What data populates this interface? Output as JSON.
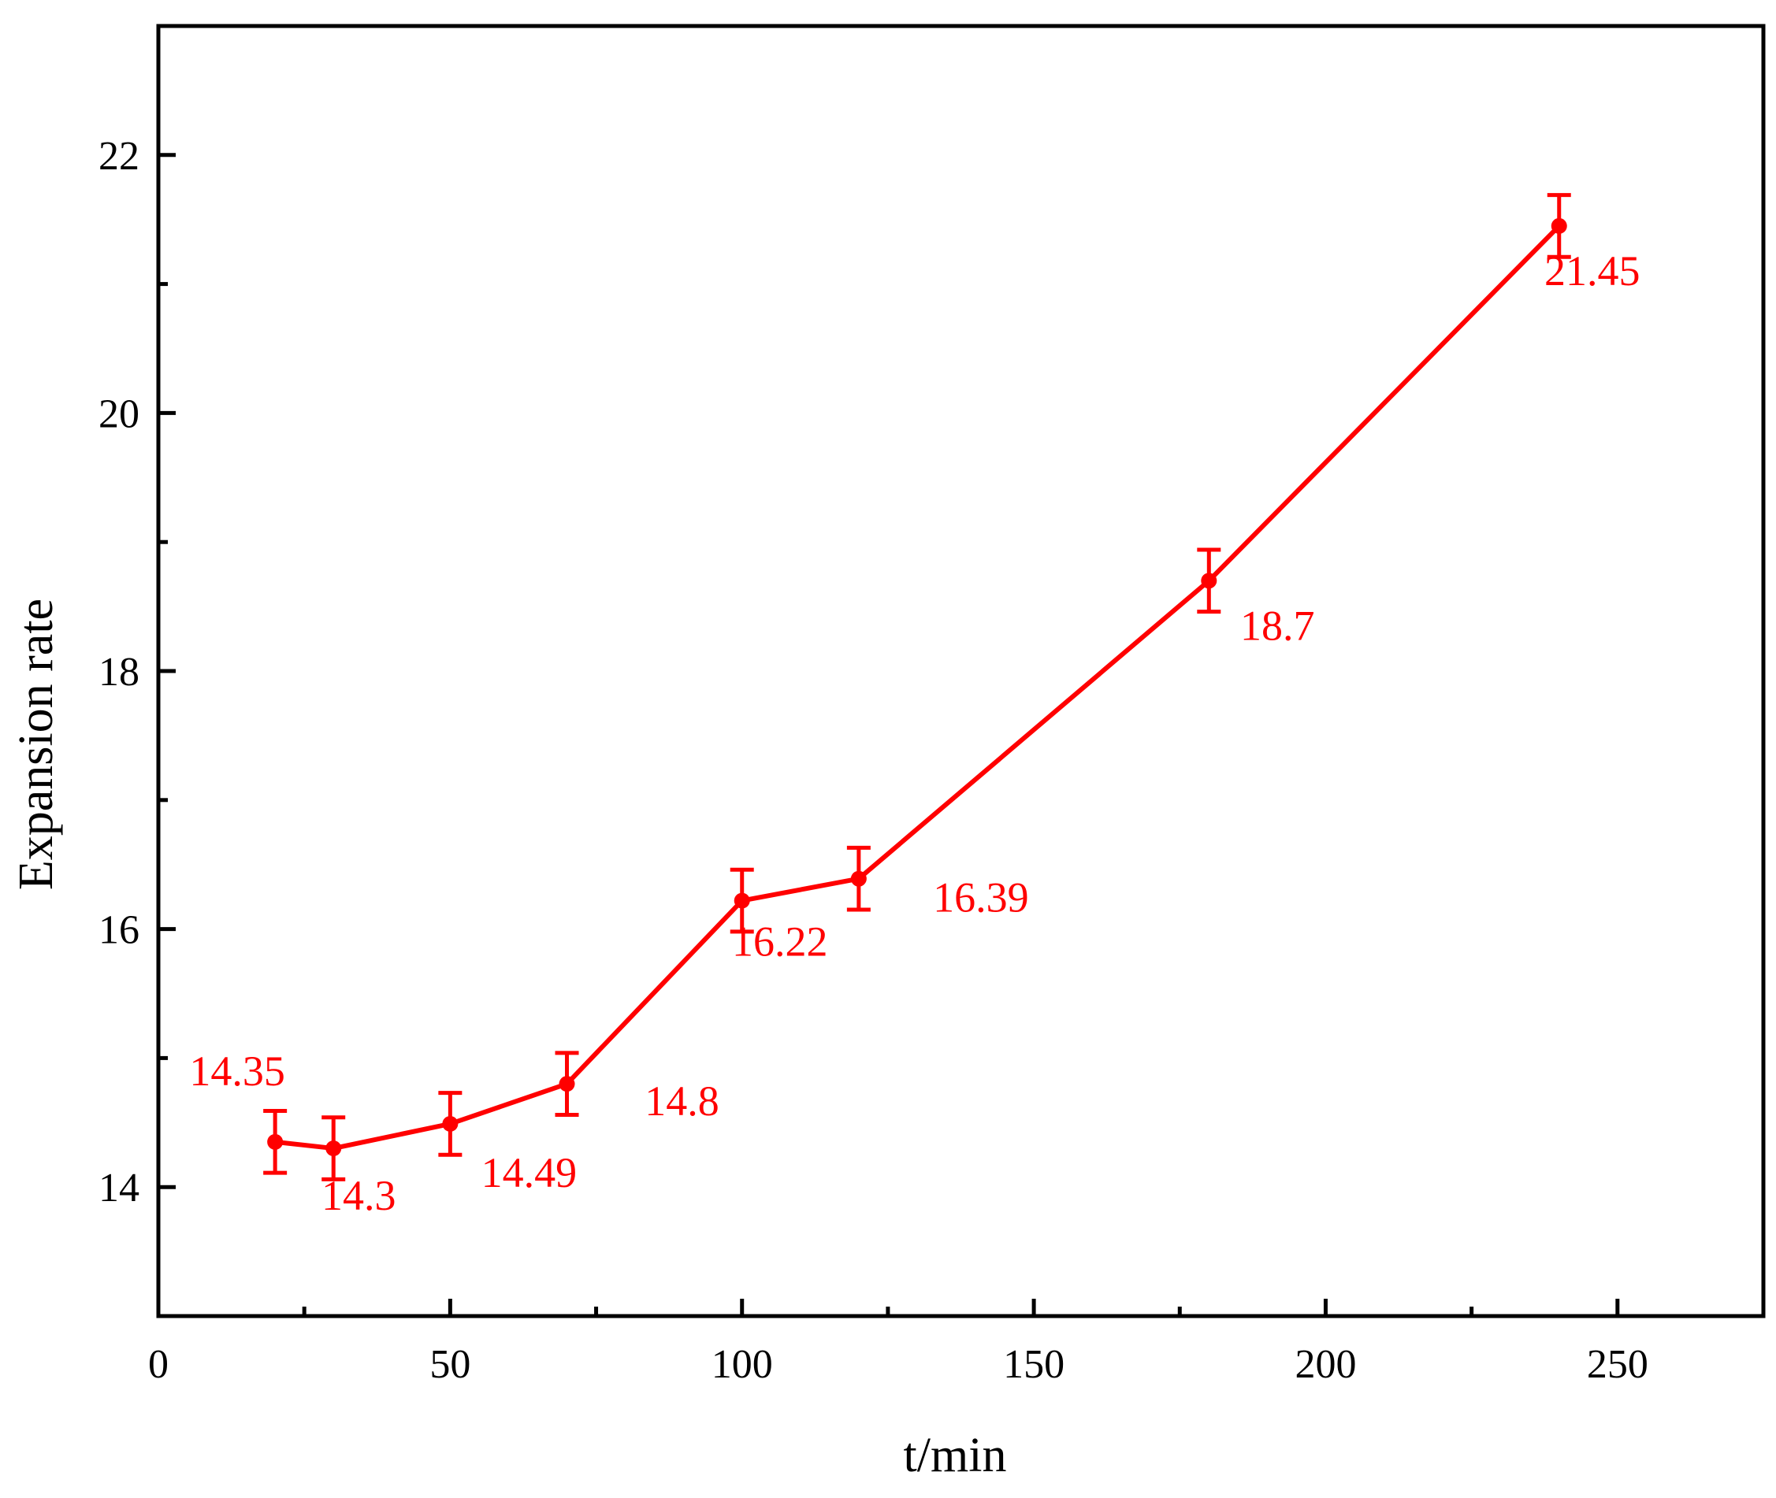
{
  "chart_data": {
    "type": "line",
    "title": "",
    "xlabel": "t/min",
    "ylabel": "Expansion rate",
    "xlim": [
      0,
      275
    ],
    "ylim": [
      13,
      23
    ],
    "x_major_ticks": [
      0,
      50,
      100,
      150,
      200,
      250
    ],
    "x_minor_ticks": [
      25,
      75,
      125,
      175,
      225,
      275
    ],
    "y_major_ticks": [
      14,
      16,
      18,
      20,
      22
    ],
    "y_minor_ticks": [
      15,
      17,
      19,
      21
    ],
    "x_tick_labels": [
      "0",
      "50",
      "100",
      "150",
      "200",
      "250"
    ],
    "y_tick_labels": [
      "14",
      "16",
      "18",
      "20",
      "22"
    ],
    "grid": false,
    "legend": "none",
    "color": "#ff0000",
    "series": [
      {
        "x": [
          20,
          30,
          50,
          70,
          100,
          120,
          180,
          240
        ],
        "y": [
          14.35,
          14.3,
          14.49,
          14.8,
          16.22,
          16.39,
          18.7,
          21.45
        ],
        "error": [
          0.24,
          0.24,
          0.24,
          0.24,
          0.24,
          0.24,
          0.24,
          0.24
        ],
        "labels": [
          "14.35",
          "14.3",
          "14.49",
          "14.8",
          "16.22",
          "16.39",
          "18.7",
          "21.45"
        ]
      }
    ]
  }
}
